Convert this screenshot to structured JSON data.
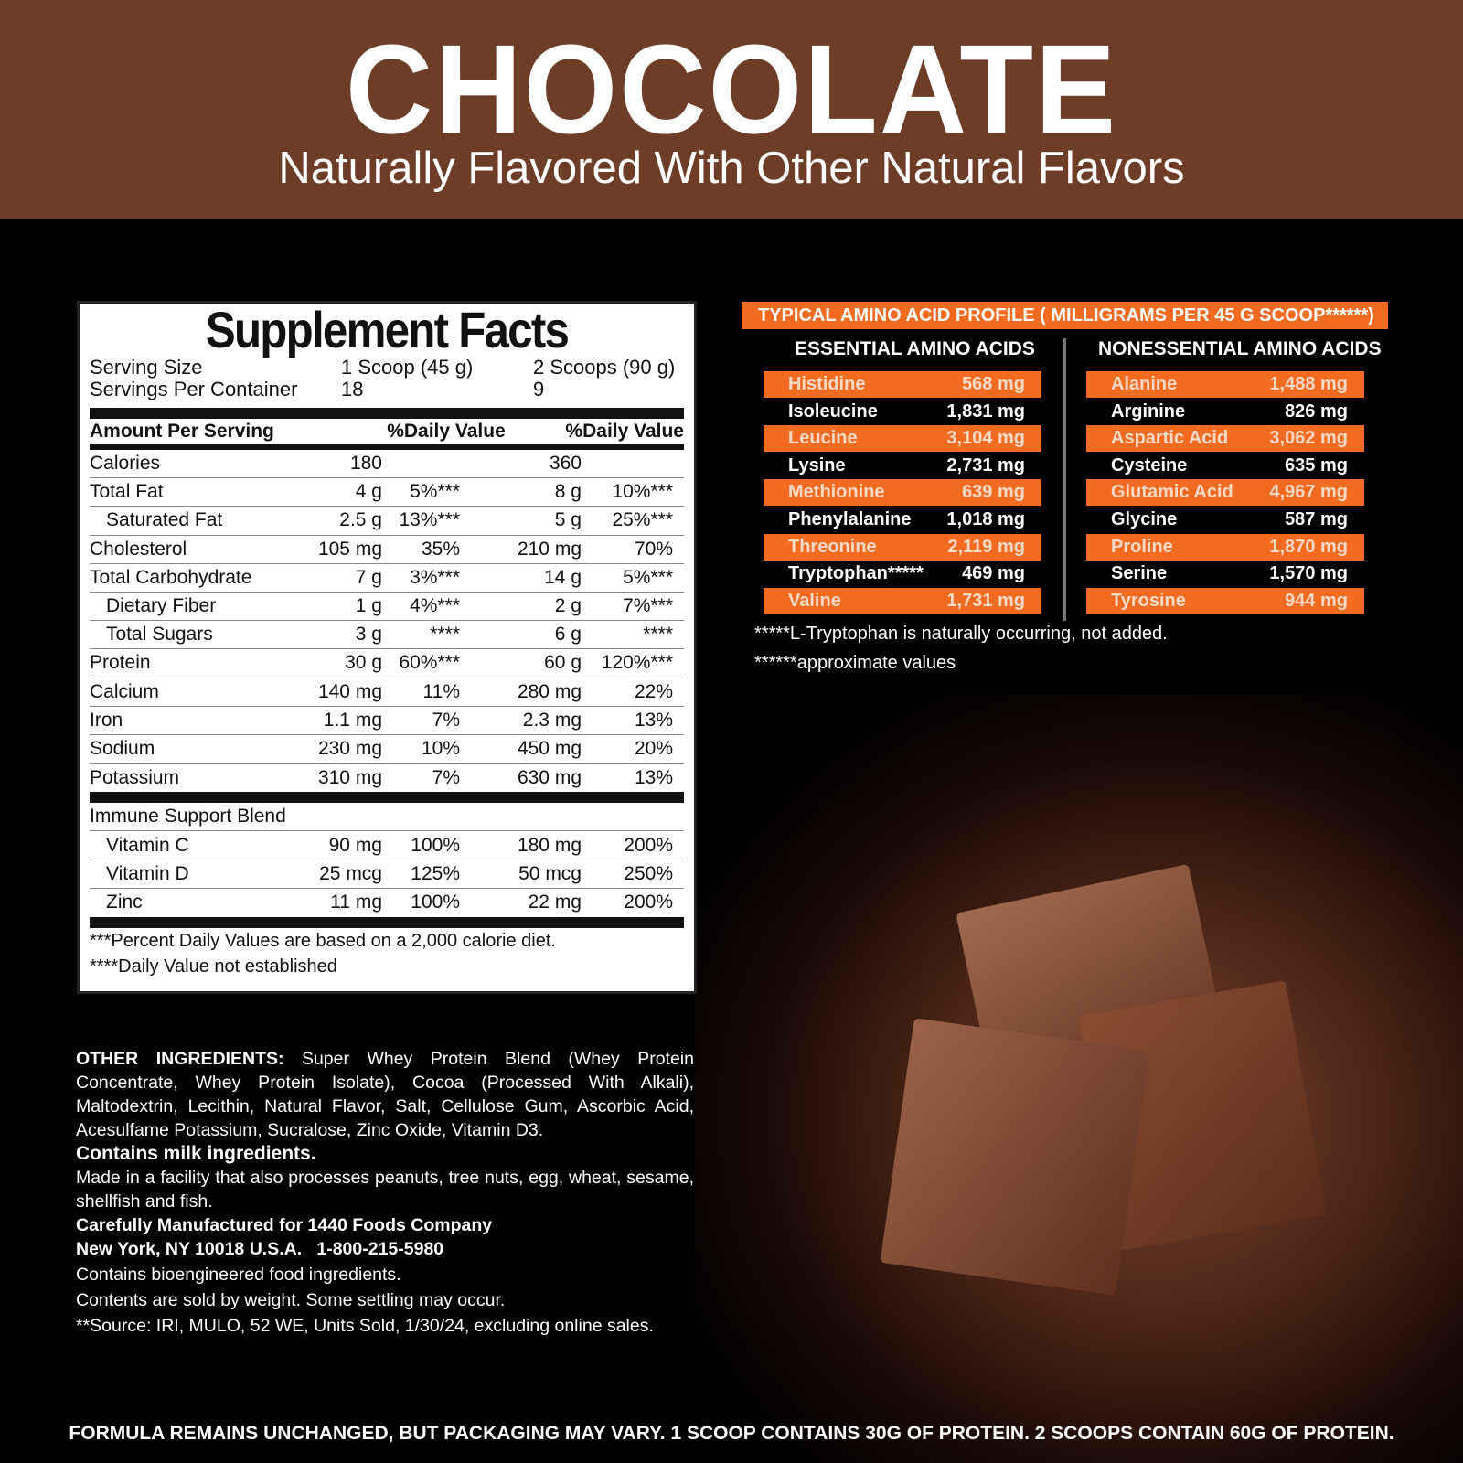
{
  "header": {
    "title": "CHOCOLATE",
    "subtitle": "Naturally Flavored With Other Natural Flavors",
    "bg": "#6e3d28"
  },
  "facts": {
    "title": "Supplement Facts",
    "serving_size_label": "Serving Size",
    "serving_size_1": "1 Scoop (45 g)",
    "serving_size_2": "2 Scoops (90 g)",
    "servings_label": "Servings Per Container",
    "servings_1": "18",
    "servings_2": "9",
    "amount_label": "Amount Per Serving",
    "dv_label_1": "%Daily Value",
    "dv_label_2": "%Daily Value",
    "rows": [
      {
        "name": "Calories",
        "a1": "180",
        "d1": "",
        "a2": "360",
        "d2": "",
        "indent": false
      },
      {
        "name": "Total Fat",
        "a1": "4 g",
        "d1": "5%***",
        "a2": "8 g",
        "d2": "10%***",
        "indent": false
      },
      {
        "name": "Saturated Fat",
        "a1": "2.5 g",
        "d1": "13%***",
        "a2": "5 g",
        "d2": "25%***",
        "indent": true
      },
      {
        "name": "Cholesterol",
        "a1": "105 mg",
        "d1": "35%",
        "a2": "210 mg",
        "d2": "70%",
        "indent": false
      },
      {
        "name": "Total Carbohydrate",
        "a1": "7 g",
        "d1": "3%***",
        "a2": "14 g",
        "d2": "5%***",
        "indent": false
      },
      {
        "name": "Dietary Fiber",
        "a1": "1 g",
        "d1": "4%***",
        "a2": "2 g",
        "d2": "7%***",
        "indent": true
      },
      {
        "name": "Total Sugars",
        "a1": "3 g",
        "d1": "****",
        "a2": "6 g",
        "d2": "****",
        "indent": true
      },
      {
        "name": "Protein",
        "a1": "30 g",
        "d1": "60%***",
        "a2": "60 g",
        "d2": "120%***",
        "indent": false
      },
      {
        "name": "Calcium",
        "a1": "140 mg",
        "d1": "11%",
        "a2": "280 mg",
        "d2": "22%",
        "indent": false
      },
      {
        "name": "Iron",
        "a1": "1.1 mg",
        "d1": "7%",
        "a2": "2.3 mg",
        "d2": "13%",
        "indent": false
      },
      {
        "name": "Sodium",
        "a1": "230 mg",
        "d1": "10%",
        "a2": "450 mg",
        "d2": "20%",
        "indent": false
      },
      {
        "name": "Potassium",
        "a1": "310 mg",
        "d1": "7%",
        "a2": "630 mg",
        "d2": "13%",
        "indent": false
      }
    ],
    "blend_label": "Immune Support Blend",
    "blend_rows": [
      {
        "name": "Vitamin C",
        "a1": "90 mg",
        "d1": "100%",
        "a2": "180 mg",
        "d2": "200%",
        "indent": true
      },
      {
        "name": "Vitamin D",
        "a1": "25 mcg",
        "d1": "125%",
        "a2": "50 mcg",
        "d2": "250%",
        "indent": true
      },
      {
        "name": "Zinc",
        "a1": "11 mg",
        "d1": "100%",
        "a2": "22 mg",
        "d2": "200%",
        "indent": true
      }
    ],
    "footnote_1": "***Percent Daily Values are based on a 2,000 calorie diet.",
    "footnote_2": "****Daily Value not established"
  },
  "amino": {
    "title": "TYPICAL AMINO ACID PROFILE ( MILLIGRAMS PER 45 G SCOOP******)",
    "accent": "#f26b21",
    "essential_label": "ESSENTIAL AMINO ACIDS",
    "nonessential_label": "NONESSENTIAL AMINO ACIDS",
    "essential": [
      {
        "name": "Histidine",
        "value": "568 mg"
      },
      {
        "name": "Isoleucine",
        "value": "1,831 mg"
      },
      {
        "name": "Leucine",
        "value": "3,104 mg"
      },
      {
        "name": "Lysine",
        "value": "2,731 mg"
      },
      {
        "name": "Methionine",
        "value": "639 mg"
      },
      {
        "name": "Phenylalanine",
        "value": "1,018 mg"
      },
      {
        "name": "Threonine",
        "value": "2,119 mg"
      },
      {
        "name": "Tryptophan*****",
        "value": "469 mg"
      },
      {
        "name": "Valine",
        "value": "1,731 mg"
      }
    ],
    "nonessential": [
      {
        "name": "Alanine",
        "value": "1,488 mg"
      },
      {
        "name": "Arginine",
        "value": "826 mg"
      },
      {
        "name": "Aspartic Acid",
        "value": "3,062 mg"
      },
      {
        "name": "Cysteine",
        "value": "635 mg"
      },
      {
        "name": "Glutamic Acid",
        "value": "4,967 mg"
      },
      {
        "name": "Glycine",
        "value": "587 mg"
      },
      {
        "name": "Proline",
        "value": "1,870 mg"
      },
      {
        "name": "Serine",
        "value": "1,570 mg"
      },
      {
        "name": "Tyrosine",
        "value": "944 mg"
      }
    ],
    "note_1": "*****L-Tryptophan is naturally occurring, not added.",
    "note_2": "******approximate values"
  },
  "ingredients": {
    "label": "OTHER INGREDIENTS:",
    "text": " Super Whey Protein Blend (Whey Protein Concentrate, Whey Protein Isolate), Cocoa (Processed With Alkali), Maltodextrin, Lecithin, Natural Flavor, Salt, Cellulose Gum, Ascorbic Acid, Acesulfame Potassium, Sucralose, Zinc Oxide, Vitamin D3.",
    "allergen": "Contains milk ingredients.",
    "facility": "Made in a facility that also processes peanuts, tree nuts, egg, wheat, sesame, shellfish and fish.",
    "mfr_1": "Carefully Manufactured for 1440 Foods Company",
    "mfr_2": "New York, NY 10018 U.S.A.   1-800-215-5980",
    "bioengineered": "Contains bioengineered food ingredients.",
    "weight": "Contents are sold by weight. Some settling may occur.",
    "source": "**Source: IRI, MULO, 52 WE, Units Sold, 1/30/24, excluding online sales."
  },
  "bottom_text": "FORMULA REMAINS UNCHANGED, BUT PACKAGING MAY VARY. 1 SCOOP CONTAINS 30G OF PROTEIN. 2 SCOOPS CONTAIN 60G OF PROTEIN."
}
